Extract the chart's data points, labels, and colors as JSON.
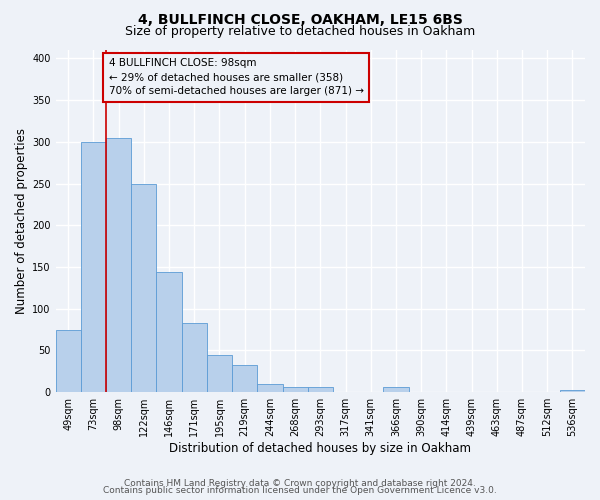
{
  "title": "4, BULLFINCH CLOSE, OAKHAM, LE15 6BS",
  "subtitle": "Size of property relative to detached houses in Oakham",
  "xlabel": "Distribution of detached houses by size in Oakham",
  "ylabel": "Number of detached properties",
  "bin_labels": [
    "49sqm",
    "73sqm",
    "98sqm",
    "122sqm",
    "146sqm",
    "171sqm",
    "195sqm",
    "219sqm",
    "244sqm",
    "268sqm",
    "293sqm",
    "317sqm",
    "341sqm",
    "366sqm",
    "390sqm",
    "414sqm",
    "439sqm",
    "463sqm",
    "487sqm",
    "512sqm",
    "536sqm"
  ],
  "bar_values": [
    75,
    300,
    305,
    250,
    144,
    83,
    44,
    32,
    10,
    6,
    6,
    0,
    0,
    6,
    0,
    0,
    0,
    0,
    0,
    0,
    3
  ],
  "bar_color": "#b8d0eb",
  "bar_edgecolor": "#5b9bd5",
  "vline_x_index": 2,
  "vline_color": "#cc0000",
  "annotation_text": "4 BULLFINCH CLOSE: 98sqm\n← 29% of detached houses are smaller (358)\n70% of semi-detached houses are larger (871) →",
  "annotation_box_edgecolor": "#cc0000",
  "ylim": [
    0,
    410
  ],
  "yticks": [
    0,
    50,
    100,
    150,
    200,
    250,
    300,
    350,
    400
  ],
  "footer_line1": "Contains HM Land Registry data © Crown copyright and database right 2024.",
  "footer_line2": "Contains public sector information licensed under the Open Government Licence v3.0.",
  "background_color": "#eef2f8",
  "grid_color": "#ffffff",
  "title_fontsize": 10,
  "subtitle_fontsize": 9,
  "axis_label_fontsize": 8.5,
  "tick_fontsize": 7,
  "annotation_fontsize": 7.5,
  "footer_fontsize": 6.5
}
